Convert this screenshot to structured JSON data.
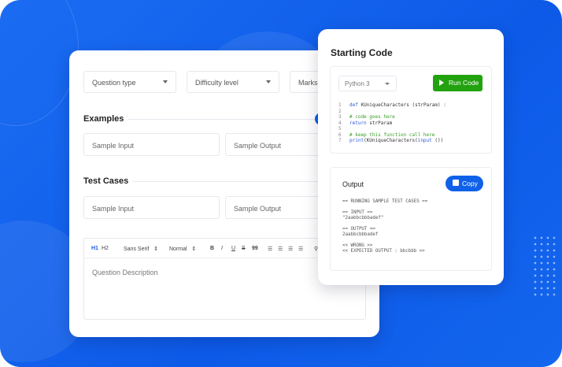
{
  "form": {
    "question_type": "Question type",
    "difficulty": "Difficulty level",
    "marks": "Marks",
    "examples_heading": "Examples",
    "sample_input": "Sample Input",
    "sample_output": "Sample Output",
    "test_cases_heading": "Test Cases",
    "tc_input": "Sample Input",
    "tc_output": "Sample Output",
    "editor": {
      "h1": "H1",
      "h2": "H2",
      "font": "Sans Serif",
      "size": "Normal",
      "bold": "B",
      "italic": "I",
      "underline": "U",
      "strike": "S",
      "quote": "99",
      "placeholder": "Question Description"
    }
  },
  "code_panel": {
    "title": "Starting Code",
    "language": "Python 3",
    "run_label": "Run Code",
    "lines": [
      {
        "n": "1",
        "parts": [
          [
            "kw",
            "def"
          ],
          [
            "",
            "KUniqueCharacters (strParam) :"
          ]
        ]
      },
      {
        "n": "2",
        "parts": []
      },
      {
        "n": "3",
        "parts": [
          [
            "cm",
            "# code goes here"
          ]
        ]
      },
      {
        "n": "4",
        "parts": [
          [
            "kw",
            "return"
          ],
          [
            "",
            " strParam"
          ]
        ]
      },
      {
        "n": "5",
        "parts": []
      },
      {
        "n": "6",
        "parts": [
          [
            "cm",
            "# keep this function call here"
          ]
        ]
      },
      {
        "n": "7",
        "parts": [
          [
            "kw",
            "print"
          ],
          [
            "",
            "(KUniqueCharacters("
          ],
          [
            "kw",
            "input"
          ],
          [
            "",
            " ())"
          ]
        ]
      }
    ]
  },
  "output_panel": {
    "title": "Output",
    "copy_label": "Copy",
    "text": "== RUNNING SAMPLE TEST CASES ==\n\n== INPUT ==\n\"2aabbcbbbadef\"\n\n== OUTPUT ==\n2aabbcbbbadef\n\n<< WRONG >>\n<< EXPECTED OUTPUT : bbcbbb >>"
  },
  "colors": {
    "background": "#1466ee",
    "run": "#22a20f",
    "copy": "#0f61e8"
  }
}
